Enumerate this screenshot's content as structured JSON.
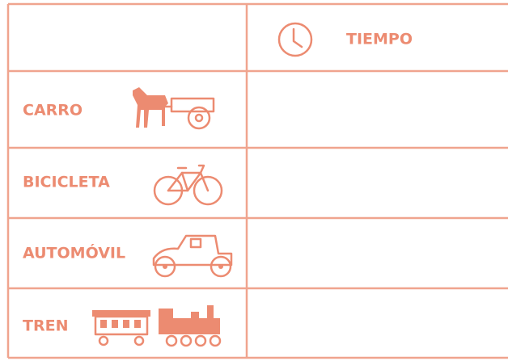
{
  "table": {
    "header": {
      "title": "TIEMPO"
    },
    "rows": [
      {
        "label": "CARRO"
      },
      {
        "label": "BICICLETA"
      },
      {
        "label": "AUTOMÓVIL"
      },
      {
        "label": "TREN"
      }
    ]
  }
}
